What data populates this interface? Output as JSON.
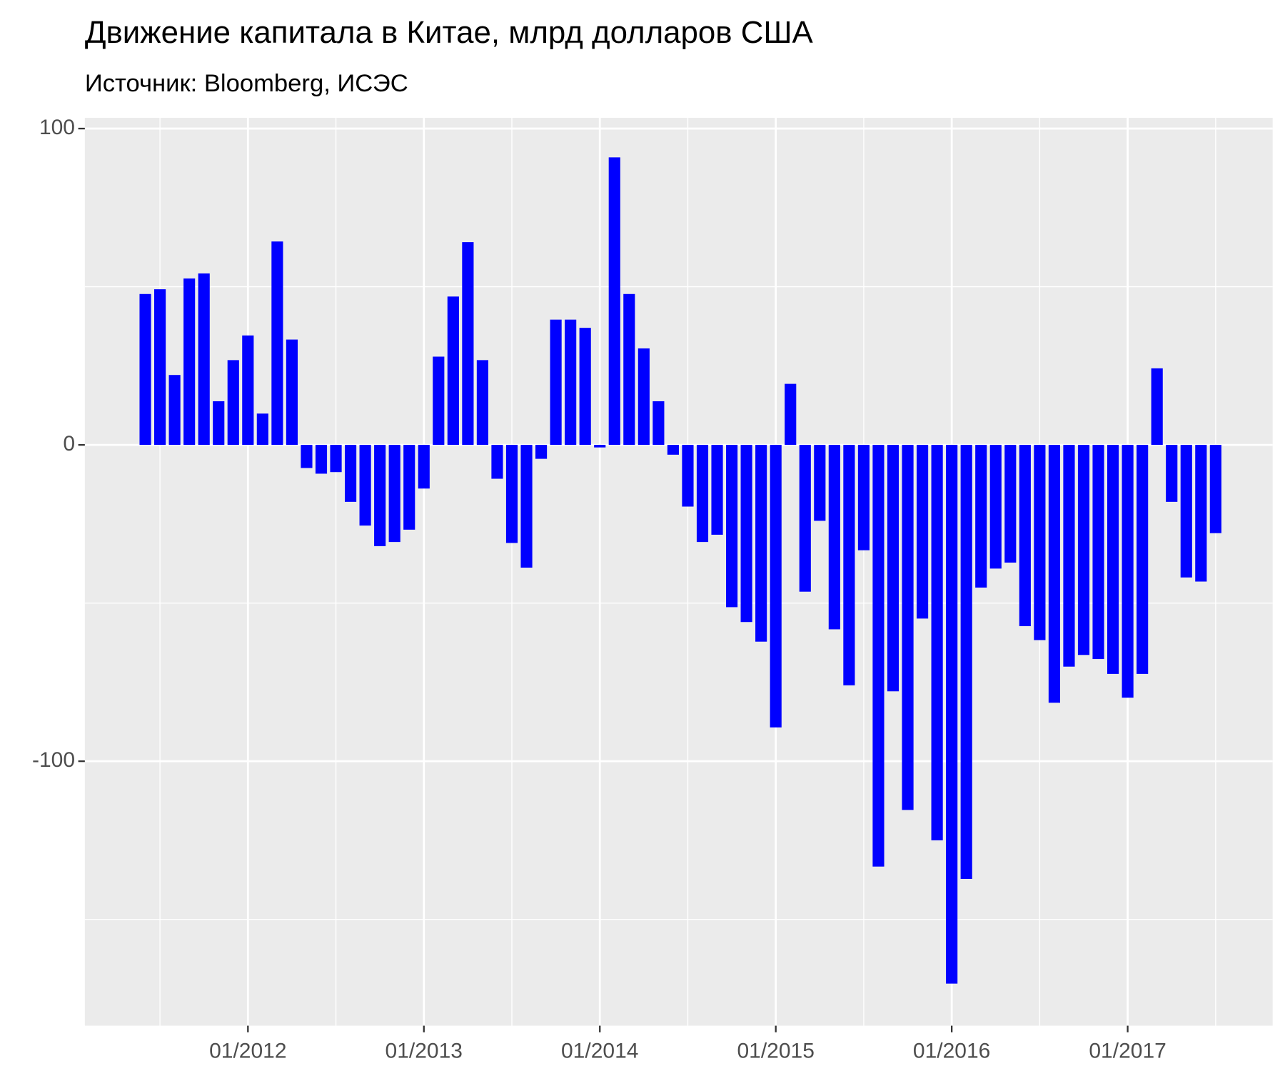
{
  "chart_data": {
    "type": "bar",
    "title": "Движение капитала в Китае, млрд долларов США",
    "subtitle": "Источник: Bloomberg, ИСЭС",
    "color": "#0000ff",
    "x": [
      "06/2011",
      "07/2011",
      "08/2011",
      "09/2011",
      "10/2011",
      "11/2011",
      "12/2011",
      "01/2012",
      "02/2012",
      "03/2012",
      "04/2012",
      "05/2012",
      "06/2012",
      "07/2012",
      "08/2012",
      "09/2012",
      "10/2012",
      "11/2012",
      "12/2012",
      "01/2013",
      "02/2013",
      "03/2013",
      "04/2013",
      "05/2013",
      "06/2013",
      "07/2013",
      "08/2013",
      "09/2013",
      "10/2013",
      "11/2013",
      "12/2013",
      "01/2014",
      "02/2014",
      "03/2014",
      "04/2014",
      "05/2014",
      "06/2014",
      "07/2014",
      "08/2014",
      "09/2014",
      "10/2014",
      "11/2014",
      "12/2014",
      "01/2015",
      "02/2015",
      "03/2015",
      "04/2015",
      "05/2015",
      "06/2015",
      "07/2015",
      "08/2015",
      "09/2015",
      "10/2015",
      "11/2015",
      "12/2015",
      "01/2016",
      "02/2016",
      "03/2016",
      "04/2016",
      "05/2016",
      "06/2016",
      "07/2016",
      "08/2016",
      "09/2016",
      "10/2016",
      "11/2016",
      "12/2016",
      "01/2017",
      "02/2017",
      "03/2017",
      "04/2017",
      "05/2017",
      "06/2017",
      "07/2017"
    ],
    "values": [
      47.7,
      49.2,
      22.1,
      52.6,
      54.2,
      13.8,
      26.8,
      34.6,
      9.9,
      64.3,
      33.3,
      -7.3,
      -9.1,
      -8.6,
      -18.0,
      -25.5,
      -32.0,
      -30.7,
      -26.8,
      -13.8,
      27.9,
      46.9,
      64.1,
      26.8,
      -10.7,
      -31.0,
      -38.8,
      -4.4,
      39.6,
      39.6,
      37.0,
      -0.8,
      90.9,
      47.7,
      30.5,
      13.8,
      -3.1,
      -19.5,
      -30.7,
      -28.4,
      -51.3,
      -56.0,
      -62.2,
      -89.3,
      19.3,
      -46.4,
      -24.0,
      -58.3,
      -76.0,
      -33.3,
      -133.3,
      -77.9,
      -115.4,
      -54.9,
      -125.0,
      -170.3,
      -137.2,
      -45.1,
      -39.1,
      -37.2,
      -57.3,
      -61.7,
      -81.5,
      -70.1,
      -66.4,
      -67.7,
      -72.4,
      -79.9,
      -72.4,
      24.2,
      -18.0,
      -41.9,
      -43.2,
      -27.9
    ],
    "xticks": [
      "01/2012",
      "01/2013",
      "01/2014",
      "01/2015",
      "01/2016",
      "01/2017"
    ],
    "x_minor_ticks": [
      "07/2011",
      "07/2012",
      "07/2013",
      "07/2014",
      "07/2015",
      "07/2016",
      "07/2017"
    ],
    "ylim": [
      -183.6,
      103.4
    ],
    "yticks": [
      -100,
      0,
      100
    ],
    "y_minor_ticks": [
      -150,
      -50,
      50
    ],
    "grid": true
  }
}
